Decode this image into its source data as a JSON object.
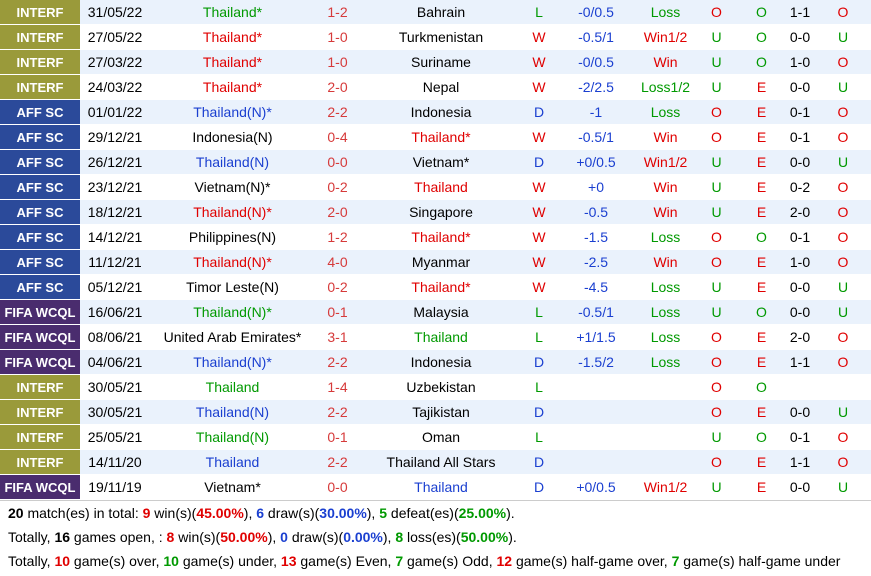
{
  "rows": [
    {
      "comp": "INTERF",
      "comp_color": "#9a9a3a",
      "date": "31/05/22",
      "home": "Thailand*",
      "score": "1-2",
      "away": "Bahrain",
      "result": "L",
      "hdp": "-0/0.5",
      "hdp_result": "Loss",
      "ou": "O",
      "oe": "O",
      "ht": "1-1",
      "ht_ou": "O",
      "highlight": "home",
      "colors": {
        "result": "#009900",
        "hdp_result": "#009900",
        "ou": "#e00000",
        "oe": "#009900",
        "ht_ou": "#e00000"
      }
    },
    {
      "comp": "INTERF",
      "comp_color": "#9a9a3a",
      "date": "27/05/22",
      "home": "Thailand*",
      "score": "1-0",
      "away": "Turkmenistan",
      "result": "W",
      "hdp": "-0.5/1",
      "hdp_result": "Win1/2",
      "ou": "U",
      "oe": "O",
      "ht": "0-0",
      "ht_ou": "U",
      "highlight": "home",
      "colors": {
        "result": "#e00000",
        "hdp_result": "#e00000",
        "ou": "#009900",
        "oe": "#009900",
        "ht_ou": "#009900"
      }
    },
    {
      "comp": "INTERF",
      "comp_color": "#9a9a3a",
      "date": "27/03/22",
      "home": "Thailand*",
      "score": "1-0",
      "away": "Suriname",
      "result": "W",
      "hdp": "-0/0.5",
      "hdp_result": "Win",
      "ou": "U",
      "oe": "O",
      "ht": "1-0",
      "ht_ou": "O",
      "highlight": "home",
      "colors": {
        "result": "#e00000",
        "hdp_result": "#e00000",
        "ou": "#009900",
        "oe": "#009900",
        "ht_ou": "#e00000"
      }
    },
    {
      "comp": "INTERF",
      "comp_color": "#9a9a3a",
      "date": "24/03/22",
      "home": "Thailand*",
      "score": "2-0",
      "away": "Nepal",
      "result": "W",
      "hdp": "-2/2.5",
      "hdp_result": "Loss1/2",
      "ou": "U",
      "oe": "E",
      "ht": "0-0",
      "ht_ou": "U",
      "highlight": "home",
      "colors": {
        "result": "#e00000",
        "hdp_result": "#009900",
        "ou": "#009900",
        "oe": "#e00000",
        "ht_ou": "#009900"
      }
    },
    {
      "comp": "AFF SC",
      "comp_color": "#2b4a9a",
      "date": "01/01/22",
      "home": "Thailand(N)*",
      "score": "2-2",
      "away": "Indonesia",
      "result": "D",
      "hdp": "-1",
      "hdp_result": "Loss",
      "ou": "O",
      "oe": "E",
      "ht": "0-1",
      "ht_ou": "O",
      "highlight": "home",
      "colors": {
        "result": "#1a3fd0",
        "hdp_result": "#009900",
        "ou": "#e00000",
        "oe": "#e00000",
        "ht_ou": "#e00000"
      }
    },
    {
      "comp": "AFF SC",
      "comp_color": "#2b4a9a",
      "date": "29/12/21",
      "home": "Indonesia(N)",
      "score": "0-4",
      "away": "Thailand*",
      "result": "W",
      "hdp": "-0.5/1",
      "hdp_result": "Win",
      "ou": "O",
      "oe": "E",
      "ht": "0-1",
      "ht_ou": "O",
      "highlight": "away",
      "colors": {
        "result": "#e00000",
        "hdp_result": "#e00000",
        "ou": "#e00000",
        "oe": "#e00000",
        "ht_ou": "#e00000"
      }
    },
    {
      "comp": "AFF SC",
      "comp_color": "#2b4a9a",
      "date": "26/12/21",
      "home": "Thailand(N)",
      "score": "0-0",
      "away": "Vietnam*",
      "result": "D",
      "hdp": "+0/0.5",
      "hdp_result": "Win1/2",
      "ou": "U",
      "oe": "E",
      "ht": "0-0",
      "ht_ou": "U",
      "highlight": "home",
      "colors": {
        "result": "#1a3fd0",
        "hdp_result": "#e00000",
        "ou": "#009900",
        "oe": "#e00000",
        "ht_ou": "#009900"
      }
    },
    {
      "comp": "AFF SC",
      "comp_color": "#2b4a9a",
      "date": "23/12/21",
      "home": "Vietnam(N)*",
      "score": "0-2",
      "away": "Thailand",
      "result": "W",
      "hdp": "+0",
      "hdp_result": "Win",
      "ou": "U",
      "oe": "E",
      "ht": "0-2",
      "ht_ou": "O",
      "highlight": "away",
      "colors": {
        "result": "#e00000",
        "hdp_result": "#e00000",
        "ou": "#009900",
        "oe": "#e00000",
        "ht_ou": "#e00000"
      }
    },
    {
      "comp": "AFF SC",
      "comp_color": "#2b4a9a",
      "date": "18/12/21",
      "home": "Thailand(N)*",
      "score": "2-0",
      "away": "Singapore",
      "result": "W",
      "hdp": "-0.5",
      "hdp_result": "Win",
      "ou": "U",
      "oe": "E",
      "ht": "2-0",
      "ht_ou": "O",
      "highlight": "home",
      "colors": {
        "result": "#e00000",
        "hdp_result": "#e00000",
        "ou": "#009900",
        "oe": "#e00000",
        "ht_ou": "#e00000"
      }
    },
    {
      "comp": "AFF SC",
      "comp_color": "#2b4a9a",
      "date": "14/12/21",
      "home": "Philippines(N)",
      "score": "1-2",
      "away": "Thailand*",
      "result": "W",
      "hdp": "-1.5",
      "hdp_result": "Loss",
      "ou": "O",
      "oe": "O",
      "ht": "0-1",
      "ht_ou": "O",
      "highlight": "away",
      "colors": {
        "result": "#e00000",
        "hdp_result": "#009900",
        "ou": "#e00000",
        "oe": "#009900",
        "ht_ou": "#e00000"
      }
    },
    {
      "comp": "AFF SC",
      "comp_color": "#2b4a9a",
      "date": "11/12/21",
      "home": "Thailand(N)*",
      "score": "4-0",
      "away": "Myanmar",
      "result": "W",
      "hdp": "-2.5",
      "hdp_result": "Win",
      "ou": "O",
      "oe": "E",
      "ht": "1-0",
      "ht_ou": "O",
      "highlight": "home",
      "colors": {
        "result": "#e00000",
        "hdp_result": "#e00000",
        "ou": "#e00000",
        "oe": "#e00000",
        "ht_ou": "#e00000"
      }
    },
    {
      "comp": "AFF SC",
      "comp_color": "#2b4a9a",
      "date": "05/12/21",
      "home": "Timor Leste(N)",
      "score": "0-2",
      "away": "Thailand*",
      "result": "W",
      "hdp": "-4.5",
      "hdp_result": "Loss",
      "ou": "U",
      "oe": "E",
      "ht": "0-0",
      "ht_ou": "U",
      "highlight": "away",
      "colors": {
        "result": "#e00000",
        "hdp_result": "#009900",
        "ou": "#009900",
        "oe": "#e00000",
        "ht_ou": "#009900"
      }
    },
    {
      "comp": "FIFA WCQL",
      "comp_color": "#4a2c6e",
      "date": "16/06/21",
      "home": "Thailand(N)*",
      "score": "0-1",
      "away": "Malaysia",
      "result": "L",
      "hdp": "-0.5/1",
      "hdp_result": "Loss",
      "ou": "U",
      "oe": "O",
      "ht": "0-0",
      "ht_ou": "U",
      "highlight": "home",
      "colors": {
        "result": "#009900",
        "hdp_result": "#009900",
        "ou": "#009900",
        "oe": "#009900",
        "ht_ou": "#009900"
      }
    },
    {
      "comp": "FIFA WCQL",
      "comp_color": "#4a2c6e",
      "date": "08/06/21",
      "home": "United Arab Emirates*",
      "score": "3-1",
      "away": "Thailand",
      "result": "L",
      "hdp": "+1/1.5",
      "hdp_result": "Loss",
      "ou": "O",
      "oe": "E",
      "ht": "2-0",
      "ht_ou": "O",
      "highlight": "away",
      "colors": {
        "result": "#009900",
        "hdp_result": "#009900",
        "ou": "#e00000",
        "oe": "#e00000",
        "ht_ou": "#e00000"
      }
    },
    {
      "comp": "FIFA WCQL",
      "comp_color": "#4a2c6e",
      "date": "04/06/21",
      "home": "Thailand(N)*",
      "score": "2-2",
      "away": "Indonesia",
      "result": "D",
      "hdp": "-1.5/2",
      "hdp_result": "Loss",
      "ou": "O",
      "oe": "E",
      "ht": "1-1",
      "ht_ou": "O",
      "highlight": "home",
      "colors": {
        "result": "#1a3fd0",
        "hdp_result": "#009900",
        "ou": "#e00000",
        "oe": "#e00000",
        "ht_ou": "#e00000"
      }
    },
    {
      "comp": "INTERF",
      "comp_color": "#9a9a3a",
      "date": "30/05/21",
      "home": "Thailand",
      "score": "1-4",
      "away": "Uzbekistan",
      "result": "L",
      "ou": "O",
      "oe": "O",
      "highlight": "home",
      "colors": {
        "result": "#009900",
        "ou": "#e00000",
        "oe": "#009900"
      }
    },
    {
      "comp": "INTERF",
      "comp_color": "#9a9a3a",
      "date": "30/05/21",
      "home": "Thailand(N)",
      "score": "2-2",
      "away": "Tajikistan",
      "result": "D",
      "ou": "O",
      "oe": "E",
      "ht": "0-0",
      "ht_ou": "U",
      "highlight": "home",
      "colors": {
        "result": "#1a3fd0",
        "ou": "#e00000",
        "oe": "#e00000",
        "ht_ou": "#009900"
      }
    },
    {
      "comp": "INTERF",
      "comp_color": "#9a9a3a",
      "date": "25/05/21",
      "home": "Thailand(N)",
      "score": "0-1",
      "away": "Oman",
      "result": "L",
      "ou": "U",
      "oe": "O",
      "ht": "0-1",
      "ht_ou": "O",
      "highlight": "home",
      "colors": {
        "result": "#009900",
        "ou": "#009900",
        "oe": "#009900",
        "ht_ou": "#e00000"
      }
    },
    {
      "comp": "INTERF",
      "comp_color": "#9a9a3a",
      "date": "14/11/20",
      "home": "Thailand",
      "score": "2-2",
      "away": "Thailand All Stars",
      "result": "D",
      "ou": "O",
      "oe": "E",
      "ht": "1-1",
      "ht_ou": "O",
      "highlight": "home",
      "colors": {
        "result": "#1a3fd0",
        "ou": "#e00000",
        "oe": "#e00000",
        "ht_ou": "#e00000"
      }
    },
    {
      "comp": "FIFA WCQL",
      "comp_color": "#4a2c6e",
      "date": "19/11/19",
      "home": "Vietnam*",
      "score": "0-0",
      "away": "Thailand",
      "result": "D",
      "hdp": "+0/0.5",
      "hdp_result": "Win1/2",
      "ou": "U",
      "oe": "E",
      "ht": "0-0",
      "ht_ou": "U",
      "highlight": "away",
      "colors": {
        "result": "#1a3fd0",
        "hdp_result": "#e00000",
        "ou": "#009900",
        "oe": "#e00000",
        "ht_ou": "#009900"
      }
    }
  ],
  "summary": [
    {
      "segments": [
        {
          "text": "20",
          "color": "#000000"
        },
        {
          "text": " match(es) in total: "
        },
        {
          "text": "9",
          "color": "#e00000"
        },
        {
          "text": " win(s)("
        },
        {
          "text": "45.00%",
          "color": "#e00000"
        },
        {
          "text": "), "
        },
        {
          "text": "6",
          "color": "#1a3fd0"
        },
        {
          "text": " draw(s)("
        },
        {
          "text": "30.00%",
          "color": "#1a3fd0"
        },
        {
          "text": "), "
        },
        {
          "text": "5",
          "color": "#009900"
        },
        {
          "text": " defeat(es)("
        },
        {
          "text": "25.00%",
          "color": "#009900"
        },
        {
          "text": ")."
        }
      ]
    },
    {
      "segments": [
        {
          "text": "Totally, "
        },
        {
          "text": "16",
          "color": "#000000"
        },
        {
          "text": " games open, : "
        },
        {
          "text": "8",
          "color": "#e00000"
        },
        {
          "text": " win(s)("
        },
        {
          "text": "50.00%",
          "color": "#e00000"
        },
        {
          "text": "), "
        },
        {
          "text": "0",
          "color": "#1a3fd0"
        },
        {
          "text": " draw(s)("
        },
        {
          "text": "0.00%",
          "color": "#1a3fd0"
        },
        {
          "text": "), "
        },
        {
          "text": "8",
          "color": "#009900"
        },
        {
          "text": " loss(es)("
        },
        {
          "text": "50.00%",
          "color": "#009900"
        },
        {
          "text": ")."
        }
      ]
    },
    {
      "segments": [
        {
          "text": "Totally, "
        },
        {
          "text": "10",
          "color": "#e00000"
        },
        {
          "text": " game(s) over, "
        },
        {
          "text": "10",
          "color": "#009900"
        },
        {
          "text": " game(s) under, "
        },
        {
          "text": "13",
          "color": "#e00000"
        },
        {
          "text": " game(s) Even, "
        },
        {
          "text": "7",
          "color": "#009900"
        },
        {
          "text": " game(s) Odd, "
        },
        {
          "text": "12",
          "color": "#e00000"
        },
        {
          "text": " game(s) half-game over, "
        },
        {
          "text": "7",
          "color": "#009900"
        },
        {
          "text": " game(s) half-game under"
        }
      ]
    }
  ]
}
